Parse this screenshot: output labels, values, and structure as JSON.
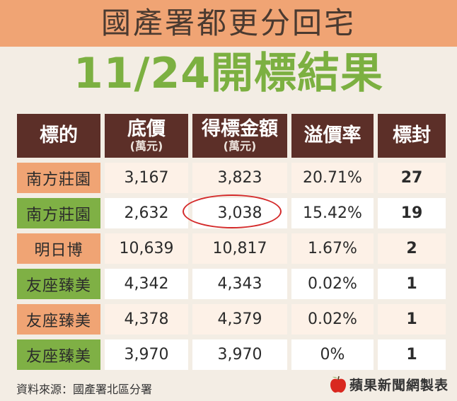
{
  "header": {
    "title": "國產署都更分回宅",
    "subtitle": "11/24開標結果"
  },
  "table": {
    "headers": [
      {
        "main": "標的",
        "sub": ""
      },
      {
        "main": "底價",
        "sub": "(萬元)"
      },
      {
        "main": "得標金額",
        "sub": "(萬元)"
      },
      {
        "main": "溢價率",
        "sub": ""
      },
      {
        "main": "標封",
        "sub": ""
      }
    ],
    "rows": [
      {
        "name": "南方莊園",
        "base": "3,167",
        "winning": "3,823",
        "premium": "20.71%",
        "bids": "27"
      },
      {
        "name": "南方莊園",
        "base": "2,632",
        "winning": "3,038",
        "premium": "15.42%",
        "bids": "19"
      },
      {
        "name": "明日博",
        "base": "10,639",
        "winning": "10,817",
        "premium": "1.67%",
        "bids": "2"
      },
      {
        "name": "友座臻美",
        "base": "4,342",
        "winning": "4,343",
        "premium": "0.02%",
        "bids": "1"
      },
      {
        "name": "友座臻美",
        "base": "4,378",
        "winning": "4,379",
        "premium": "0.02%",
        "bids": "1"
      },
      {
        "name": "友座臻美",
        "base": "3,970",
        "winning": "3,970",
        "premium": "0%",
        "bids": "1"
      }
    ]
  },
  "footer": {
    "source": "資料來源：國產署北區分署",
    "brand": "蘋果新聞網製表",
    "brand_icon": "apple-icon"
  },
  "colors": {
    "banner": "#f0a474",
    "subtitle": "#7cb041",
    "header_bg": "#5c2f28",
    "bids_text": "#ee8e57",
    "circle": "#d42a2a"
  }
}
